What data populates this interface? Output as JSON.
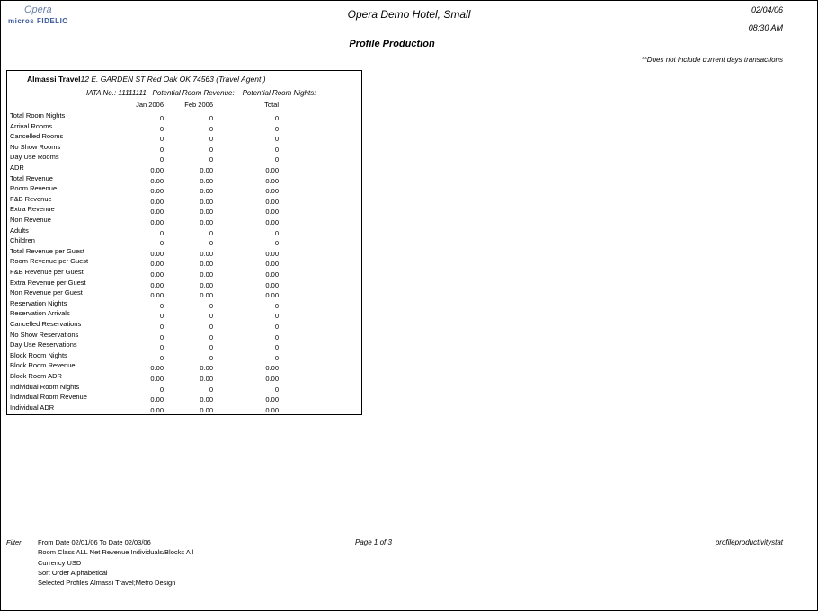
{
  "header": {
    "logo_top": "Opera",
    "logo_bottom": "micros FIDELIO",
    "hotel": "Opera Demo Hotel, Small",
    "date": "02/04/06",
    "time": "08:30 AM",
    "report_title": "Profile Production",
    "note": "**Does not include current days transactions"
  },
  "profile": {
    "name": "Almassi Travel",
    "address": "12 E. GARDEN ST   Red Oak OK 74563  (Travel Agent )",
    "iata": "IATA No.: 11111111",
    "potential_revenue": "Potential Room Revenue:",
    "potential_nights": "Potential Room Nights:"
  },
  "columns": [
    "Jan   2006",
    "Feb   2006",
    "Total"
  ],
  "rows": [
    {
      "label": "Total Room Nights",
      "values": [
        "0",
        "0",
        "0"
      ]
    },
    {
      "label": "Arrival Rooms",
      "values": [
        "0",
        "0",
        "0"
      ]
    },
    {
      "label": "Cancelled Rooms",
      "values": [
        "0",
        "0",
        "0"
      ]
    },
    {
      "label": "No Show Rooms",
      "values": [
        "0",
        "0",
        "0"
      ]
    },
    {
      "label": "Day Use Rooms",
      "values": [
        "0",
        "0",
        "0"
      ]
    },
    {
      "label": "ADR",
      "values": [
        "0.00",
        "0.00",
        "0.00"
      ]
    },
    {
      "label": "Total Revenue",
      "values": [
        "0.00",
        "0.00",
        "0.00"
      ]
    },
    {
      "label": "Room Revenue",
      "values": [
        "0.00",
        "0.00",
        "0.00"
      ]
    },
    {
      "label": "F&B Revenue",
      "values": [
        "0.00",
        "0.00",
        "0.00"
      ]
    },
    {
      "label": "Extra Revenue",
      "values": [
        "0.00",
        "0.00",
        "0.00"
      ]
    },
    {
      "label": "Non Revenue",
      "values": [
        "0.00",
        "0.00",
        "0.00"
      ]
    },
    {
      "label": "Adults",
      "values": [
        "0",
        "0",
        "0"
      ]
    },
    {
      "label": "Children",
      "values": [
        "0",
        "0",
        "0"
      ]
    },
    {
      "label": "Total Revenue per Guest",
      "values": [
        "0.00",
        "0.00",
        "0.00"
      ]
    },
    {
      "label": "Room Revenue per Guest",
      "values": [
        "0.00",
        "0.00",
        "0.00"
      ]
    },
    {
      "label": "F&B Revenue per Guest",
      "values": [
        "0.00",
        "0.00",
        "0.00"
      ]
    },
    {
      "label": "Extra Revenue per Guest",
      "values": [
        "0.00",
        "0.00",
        "0.00"
      ]
    },
    {
      "label": "Non Revenue per Guest",
      "values": [
        "0.00",
        "0.00",
        "0.00"
      ]
    },
    {
      "label": "Reservation Nights",
      "values": [
        "0",
        "0",
        "0"
      ]
    },
    {
      "label": "Reservation Arrivals",
      "values": [
        "0",
        "0",
        "0"
      ]
    },
    {
      "label": "Cancelled Reservations",
      "values": [
        "0",
        "0",
        "0"
      ]
    },
    {
      "label": "No Show Reservations",
      "values": [
        "0",
        "0",
        "0"
      ]
    },
    {
      "label": "Day Use Reservations",
      "values": [
        "0",
        "0",
        "0"
      ]
    },
    {
      "label": "Block Room Nights",
      "values": [
        "0",
        "0",
        "0"
      ]
    },
    {
      "label": "Block Room Revenue",
      "values": [
        "0.00",
        "0.00",
        "0.00"
      ]
    },
    {
      "label": "Block Room ADR",
      "values": [
        "0.00",
        "0.00",
        "0.00"
      ]
    },
    {
      "label": "Individual Room Nights",
      "values": [
        "0",
        "0",
        "0"
      ]
    },
    {
      "label": "Individual Room Revenue",
      "values": [
        "0.00",
        "0.00",
        "0.00"
      ]
    },
    {
      "label": "Individual ADR",
      "values": [
        "0.00",
        "0.00",
        "0.00"
      ]
    }
  ],
  "footer": {
    "filter_label": "Filter",
    "filter_lines": [
      "From Date 02/01/06   To Date 02/03/06",
      "Room Class ALL  Net Revenue   Individuals/Blocks All",
      "Currency USD",
      "Sort Order Alphabetical",
      "Selected Profiles Almassi Travel;Metro Design"
    ],
    "page": "Page 1 of 3",
    "report_name": "profileproductivitystat"
  }
}
